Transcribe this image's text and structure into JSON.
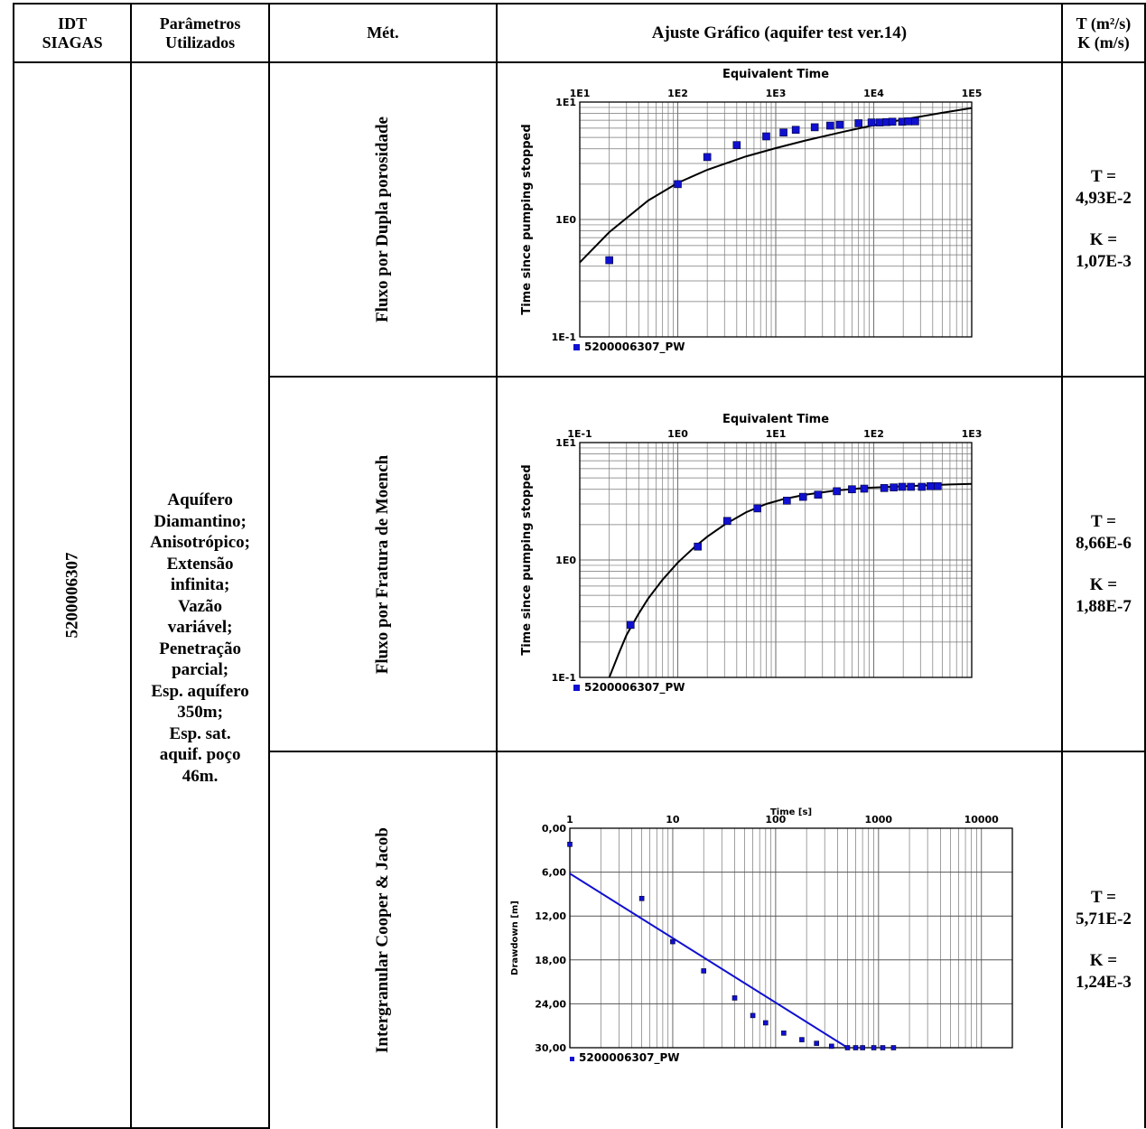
{
  "header": {
    "idt": [
      "IDT",
      "SIAGAS"
    ],
    "param": [
      "Parâmetros",
      "Utilizados"
    ],
    "met": "Mét.",
    "ajuste": "Ajuste Gráfico (aquifer test ver.14)",
    "result_t": "T (m²/s)",
    "result_k": "K (m/s)"
  },
  "well_id": "5200006307",
  "parameters": [
    "Aquífero",
    "Diamantino;",
    "Anisotrópico;",
    "Extensão",
    "infinita;",
    "Vazão",
    "variável;",
    "Penetração",
    "parcial;",
    "Esp. aquífero",
    "350m;",
    "Esp. sat.",
    "aquif. poço",
    "46m."
  ],
  "methods": [
    {
      "name": "Fluxo por Dupla porosidade",
      "t_label": "T =",
      "t_value": "4,93E-2",
      "k_label": "K =",
      "k_value": "1,07E-3"
    },
    {
      "name": "Fluxo por Fratura de Moench",
      "t_label": "T =",
      "t_value": "8,66E-6",
      "k_label": "K =",
      "k_value": "1,88E-7"
    },
    {
      "name": "Intergranular Cooper & Jacob",
      "t_label": "T =",
      "t_value": "5,71E-2",
      "k_label": "K =",
      "k_value": "1,24E-3"
    }
  ],
  "chart_data": [
    {
      "type": "scatter",
      "title": "Equivalent Time",
      "ylabel": "Time since pumping stopped",
      "x_scale": "log",
      "y_scale": "log",
      "xlim": [
        10,
        100000
      ],
      "ylim": [
        0.1,
        10
      ],
      "x_ticks": [
        "1E1",
        "1E2",
        "1E3",
        "1E4",
        "1E5"
      ],
      "y_ticks": [
        "1E1",
        "1E0",
        "1E-1"
      ],
      "legend": "bottom-left",
      "series": [
        {
          "name": "5200006307_PW",
          "color": "#1010d0",
          "x": [
            20,
            100,
            200,
            400,
            800,
            1200,
            1600,
            2500,
            3600,
            4500,
            7000,
            9500,
            11500,
            13500,
            15500,
            19500,
            22500,
            26500
          ],
          "y": [
            0.45,
            2.0,
            3.4,
            4.3,
            5.1,
            5.5,
            5.8,
            6.1,
            6.3,
            6.4,
            6.6,
            6.7,
            6.7,
            6.75,
            6.8,
            6.8,
            6.85,
            6.85
          ]
        },
        {
          "name": "curve",
          "color": "#000000",
          "x": [
            10,
            20,
            50,
            100,
            200,
            500,
            1000,
            2000,
            5000,
            10000,
            20000,
            50000,
            100000
          ],
          "y": [
            0.43,
            0.78,
            1.45,
            2.05,
            2.65,
            3.45,
            4.05,
            4.7,
            5.6,
            6.35,
            7.1,
            8.1,
            8.9
          ]
        }
      ]
    },
    {
      "type": "scatter",
      "title": "Equivalent Time",
      "ylabel": "Time since pumping stopped",
      "x_scale": "log",
      "y_scale": "log",
      "xlim": [
        0.1,
        1000
      ],
      "ylim": [
        0.1,
        10
      ],
      "x_ticks": [
        "1E-1",
        "1E0",
        "1E1",
        "1E2",
        "1E3"
      ],
      "y_ticks": [
        "1E1",
        "1E0",
        "1E-1"
      ],
      "legend": "bottom-left",
      "series": [
        {
          "name": "5200006307_PW",
          "color": "#1010d0",
          "x": [
            0.33,
            1.6,
            3.2,
            6.5,
            13,
            19,
            27,
            42,
            60,
            80,
            128,
            160,
            195,
            240,
            310,
            380,
            450
          ],
          "y": [
            0.28,
            1.3,
            2.15,
            2.75,
            3.2,
            3.45,
            3.6,
            3.85,
            4.0,
            4.05,
            4.1,
            4.15,
            4.2,
            4.2,
            4.2,
            4.25,
            4.25
          ]
        },
        {
          "name": "curve",
          "color": "#000000",
          "x": [
            0.2,
            0.25,
            0.3,
            0.4,
            0.5,
            0.7,
            1,
            1.5,
            2,
            3,
            5,
            8,
            12,
            20,
            40,
            80,
            150,
            300,
            600,
            1000
          ],
          "y": [
            0.1,
            0.16,
            0.23,
            0.35,
            0.47,
            0.68,
            0.95,
            1.3,
            1.58,
            2.0,
            2.55,
            3.0,
            3.3,
            3.6,
            3.9,
            4.1,
            4.2,
            4.3,
            4.4,
            4.45
          ]
        }
      ]
    },
    {
      "type": "scatter",
      "title": "Time [s]",
      "ylabel": "Drawdown [m]",
      "x_scale": "log",
      "y_scale": "linear",
      "xlim": [
        1,
        20000
      ],
      "ylim": [
        0,
        30
      ],
      "x_ticks": [
        "1",
        "10",
        "100",
        "1000",
        "10000"
      ],
      "y_ticks": [
        "0,00",
        "6,00",
        "12,00",
        "18,00",
        "24,00",
        "30,00"
      ],
      "legend": "bottom-left",
      "series": [
        {
          "name": "5200006307_PW",
          "color": "#1010d0",
          "x": [
            1,
            5,
            10,
            20,
            40,
            60,
            80,
            120,
            180,
            250,
            350,
            500,
            600,
            700,
            900,
            1100,
            1400
          ],
          "y": [
            2.2,
            9.6,
            15.5,
            19.5,
            23.2,
            25.6,
            26.6,
            28.0,
            28.9,
            29.4,
            29.8,
            30,
            30,
            30,
            30,
            30,
            30
          ]
        },
        {
          "name": "fit",
          "color": "#1010d0",
          "x": [
            1,
            500
          ],
          "y": [
            6.2,
            30
          ]
        }
      ]
    }
  ]
}
